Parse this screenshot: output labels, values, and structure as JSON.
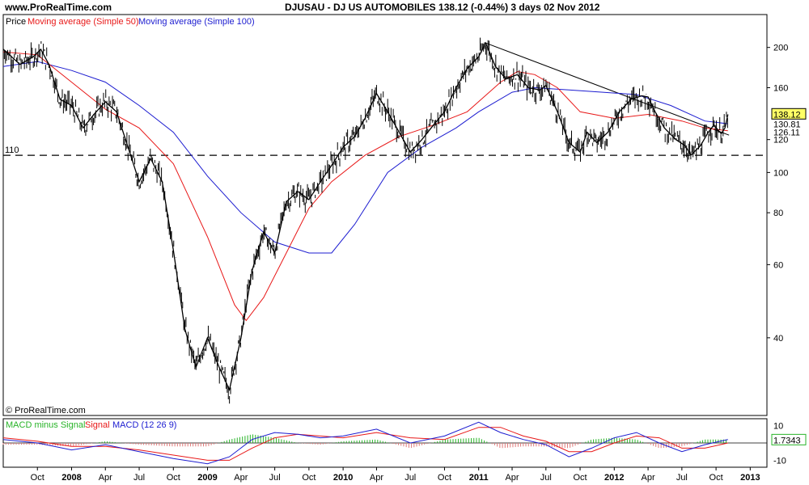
{
  "header": {
    "site": "www.ProRealTime.com",
    "title": "DJUSAU - DJ US AUTOMOBILES     138.12 (-0.44%)     3 days  02 Nov 2012"
  },
  "watermark": "© ProRealTime.com",
  "colors": {
    "price": "#000000",
    "ma50": "#e81818",
    "ma100": "#1c1cd0",
    "macd_line": "#1c1cd0",
    "signal_line": "#e81818",
    "histogram": "#28b428",
    "histogram_neg": "#e07878",
    "trendline": "#000000",
    "hline": "#000000"
  },
  "chart_data": [
    {
      "type": "line",
      "panel": "price",
      "scale": "log",
      "legend": [
        "Price",
        "Moving average (Simple 50)",
        "Moving average (Simple 100)"
      ],
      "ylim": [
        26,
        240
      ],
      "y_ticks": [
        40,
        60,
        80,
        100,
        120,
        160,
        200
      ],
      "horizontal_line": {
        "value": 110,
        "label": "110",
        "style": "dashed"
      },
      "last_price": {
        "value": "138.12"
      },
      "ma_labels": [
        "130.81",
        "126.11"
      ],
      "trendline": {
        "from": {
          "x": "2011-01-20",
          "y": 205
        },
        "to": {
          "x": "2012-11-05",
          "y": 123
        }
      },
      "x_ticks": [
        {
          "date": "2007-10-01",
          "label": "Oct",
          "year": false
        },
        {
          "date": "2008-01-01",
          "label": "2008",
          "year": true
        },
        {
          "date": "2008-04-01",
          "label": "Apr",
          "year": false
        },
        {
          "date": "2008-07-01",
          "label": "Jul",
          "year": false
        },
        {
          "date": "2008-10-01",
          "label": "Oct",
          "year": false
        },
        {
          "date": "2009-01-01",
          "label": "2009",
          "year": true
        },
        {
          "date": "2009-04-01",
          "label": "Apr",
          "year": false
        },
        {
          "date": "2009-07-01",
          "label": "Jul",
          "year": false
        },
        {
          "date": "2009-10-01",
          "label": "Oct",
          "year": false
        },
        {
          "date": "2010-01-01",
          "label": "2010",
          "year": true
        },
        {
          "date": "2010-04-01",
          "label": "Apr",
          "year": false
        },
        {
          "date": "2010-07-01",
          "label": "Jul",
          "year": false
        },
        {
          "date": "2010-10-01",
          "label": "Oct",
          "year": false
        },
        {
          "date": "2011-01-01",
          "label": "2011",
          "year": true
        },
        {
          "date": "2011-04-01",
          "label": "Apr",
          "year": false
        },
        {
          "date": "2011-07-01",
          "label": "Jul",
          "year": false
        },
        {
          "date": "2011-10-01",
          "label": "Oct",
          "year": false
        },
        {
          "date": "2012-01-01",
          "label": "2012",
          "year": true
        },
        {
          "date": "2012-04-01",
          "label": "Apr",
          "year": false
        },
        {
          "date": "2012-07-01",
          "label": "Jul",
          "year": false
        },
        {
          "date": "2012-10-01",
          "label": "Oct",
          "year": false
        },
        {
          "date": "2013-01-01",
          "label": "2013",
          "year": true
        }
      ],
      "series": [
        {
          "name": "Price",
          "points": [
            [
              "2007-07-01",
              198
            ],
            [
              "2007-08-15",
              182
            ],
            [
              "2007-09-20",
              190
            ],
            [
              "2007-10-10",
              198
            ],
            [
              "2007-11-01",
              182
            ],
            [
              "2007-12-01",
              150
            ],
            [
              "2008-01-01",
              145
            ],
            [
              "2008-02-01",
              128
            ],
            [
              "2008-03-01",
              138
            ],
            [
              "2008-04-01",
              148
            ],
            [
              "2008-05-01",
              140
            ],
            [
              "2008-06-01",
              115
            ],
            [
              "2008-07-01",
              95
            ],
            [
              "2008-08-01",
              108
            ],
            [
              "2008-09-01",
              95
            ],
            [
              "2008-10-01",
              65
            ],
            [
              "2008-11-01",
              42
            ],
            [
              "2008-12-01",
              34
            ],
            [
              "2009-01-01",
              40
            ],
            [
              "2009-02-01",
              34
            ],
            [
              "2009-03-01",
              30
            ],
            [
              "2009-04-01",
              40
            ],
            [
              "2009-05-01",
              58
            ],
            [
              "2009-06-01",
              72
            ],
            [
              "2009-07-01",
              64
            ],
            [
              "2009-08-01",
              85
            ],
            [
              "2009-09-01",
              90
            ],
            [
              "2009-10-01",
              86
            ],
            [
              "2009-11-01",
              95
            ],
            [
              "2009-12-01",
              104
            ],
            [
              "2010-01-01",
              115
            ],
            [
              "2010-02-01",
              122
            ],
            [
              "2010-03-01",
              135
            ],
            [
              "2010-04-01",
              155
            ],
            [
              "2010-05-01",
              140
            ],
            [
              "2010-06-01",
              125
            ],
            [
              "2010-07-01",
              112
            ],
            [
              "2010-08-01",
              120
            ],
            [
              "2010-09-01",
              130
            ],
            [
              "2010-10-01",
              140
            ],
            [
              "2010-11-01",
              160
            ],
            [
              "2010-12-01",
              178
            ],
            [
              "2011-01-01",
              190
            ],
            [
              "2011-01-20",
              205
            ],
            [
              "2011-02-15",
              180
            ],
            [
              "2011-03-15",
              168
            ],
            [
              "2011-04-15",
              172
            ],
            [
              "2011-05-15",
              160
            ],
            [
              "2011-06-15",
              158
            ],
            [
              "2011-07-01",
              162
            ],
            [
              "2011-08-01",
              140
            ],
            [
              "2011-09-01",
              118
            ],
            [
              "2011-10-01",
              112
            ],
            [
              "2011-10-20",
              125
            ],
            [
              "2011-11-15",
              118
            ],
            [
              "2011-12-15",
              125
            ],
            [
              "2012-01-15",
              140
            ],
            [
              "2012-02-15",
              150
            ],
            [
              "2012-03-15",
              153
            ],
            [
              "2012-04-01",
              152
            ],
            [
              "2012-04-20",
              140
            ],
            [
              "2012-05-15",
              128
            ],
            [
              "2012-06-15",
              120
            ],
            [
              "2012-07-10",
              116
            ],
            [
              "2012-07-25",
              110
            ],
            [
              "2012-08-20",
              116
            ],
            [
              "2012-09-10",
              125
            ],
            [
              "2012-09-25",
              130
            ],
            [
              "2012-10-15",
              124
            ],
            [
              "2012-10-25",
              128
            ],
            [
              "2012-11-02",
              138
            ]
          ]
        },
        {
          "name": "Moving average (Simple 50)",
          "points": [
            [
              "2007-07-01",
              195
            ],
            [
              "2007-10-01",
              192
            ],
            [
              "2008-01-01",
              165
            ],
            [
              "2008-04-01",
              142
            ],
            [
              "2008-07-01",
              128
            ],
            [
              "2008-10-01",
              105
            ],
            [
              "2009-01-01",
              70
            ],
            [
              "2009-03-15",
              48
            ],
            [
              "2009-04-15",
              44
            ],
            [
              "2009-06-01",
              50
            ],
            [
              "2009-08-01",
              64
            ],
            [
              "2009-10-01",
              82
            ],
            [
              "2009-12-01",
              95
            ],
            [
              "2010-03-01",
              110
            ],
            [
              "2010-06-01",
              122
            ],
            [
              "2010-09-01",
              130
            ],
            [
              "2010-12-01",
              140
            ],
            [
              "2011-03-01",
              165
            ],
            [
              "2011-04-15",
              175
            ],
            [
              "2011-06-01",
              172
            ],
            [
              "2011-08-01",
              160
            ],
            [
              "2011-10-01",
              140
            ],
            [
              "2012-01-01",
              135
            ],
            [
              "2012-04-01",
              138
            ],
            [
              "2012-07-01",
              133
            ],
            [
              "2012-09-01",
              128
            ],
            [
              "2012-11-02",
              126
            ]
          ]
        },
        {
          "name": "Moving average (Simple 100)",
          "points": [
            [
              "2007-07-01",
              180
            ],
            [
              "2007-10-01",
              185
            ],
            [
              "2008-01-01",
              176
            ],
            [
              "2008-04-01",
              165
            ],
            [
              "2008-07-01",
              145
            ],
            [
              "2008-10-01",
              125
            ],
            [
              "2009-01-01",
              98
            ],
            [
              "2009-04-01",
              80
            ],
            [
              "2009-07-01",
              68
            ],
            [
              "2009-10-01",
              64
            ],
            [
              "2009-12-01",
              64
            ],
            [
              "2010-02-01",
              75
            ],
            [
              "2010-05-01",
              100
            ],
            [
              "2010-08-01",
              115
            ],
            [
              "2010-11-01",
              128
            ],
            [
              "2011-01-01",
              140
            ],
            [
              "2011-04-01",
              156
            ],
            [
              "2011-06-01",
              160
            ],
            [
              "2011-09-01",
              158
            ],
            [
              "2011-12-01",
              156
            ],
            [
              "2012-03-01",
              154
            ],
            [
              "2012-06-01",
              145
            ],
            [
              "2012-09-01",
              133
            ],
            [
              "2012-11-02",
              131
            ]
          ]
        }
      ]
    },
    {
      "type": "line",
      "panel": "macd",
      "legend": [
        "MACD minus Signal",
        "Signal",
        "MACD (12 26 9)"
      ],
      "ylim": [
        -14,
        14
      ],
      "y_ticks": [
        10,
        -10
      ],
      "last_value": "1.7343",
      "series": [
        {
          "name": "MACD (12 26 9)",
          "points": [
            [
              "2007-07-01",
              2
            ],
            [
              "2007-10-01",
              0
            ],
            [
              "2008-01-01",
              -4
            ],
            [
              "2008-04-01",
              -1
            ],
            [
              "2008-07-01",
              -5
            ],
            [
              "2008-10-01",
              -9
            ],
            [
              "2009-01-01",
              -12
            ],
            [
              "2009-03-01",
              -8
            ],
            [
              "2009-05-01",
              2
            ],
            [
              "2009-07-01",
              6
            ],
            [
              "2009-09-01",
              5
            ],
            [
              "2009-11-01",
              3
            ],
            [
              "2010-01-01",
              4
            ],
            [
              "2010-04-01",
              8
            ],
            [
              "2010-07-01",
              0
            ],
            [
              "2010-10-01",
              4
            ],
            [
              "2011-01-01",
              12
            ],
            [
              "2011-03-01",
              6
            ],
            [
              "2011-05-01",
              2
            ],
            [
              "2011-07-01",
              -1
            ],
            [
              "2011-09-01",
              -8
            ],
            [
              "2011-11-01",
              -3
            ],
            [
              "2012-01-01",
              3
            ],
            [
              "2012-03-01",
              6
            ],
            [
              "2012-05-01",
              0
            ],
            [
              "2012-07-01",
              -5
            ],
            [
              "2012-09-01",
              -1
            ],
            [
              "2012-11-02",
              2
            ]
          ]
        },
        {
          "name": "Signal",
          "points": [
            [
              "2007-07-01",
              3
            ],
            [
              "2007-10-01",
              1
            ],
            [
              "2008-01-01",
              -2
            ],
            [
              "2008-04-01",
              -2
            ],
            [
              "2008-07-01",
              -4
            ],
            [
              "2008-10-01",
              -7
            ],
            [
              "2009-01-01",
              -10
            ],
            [
              "2009-03-01",
              -10
            ],
            [
              "2009-05-01",
              -3
            ],
            [
              "2009-07-01",
              3
            ],
            [
              "2009-09-01",
              5
            ],
            [
              "2009-11-01",
              4
            ],
            [
              "2010-01-01",
              3
            ],
            [
              "2010-04-01",
              6
            ],
            [
              "2010-07-01",
              3
            ],
            [
              "2010-10-01",
              2
            ],
            [
              "2011-01-01",
              9
            ],
            [
              "2011-03-01",
              9
            ],
            [
              "2011-05-01",
              4
            ],
            [
              "2011-07-01",
              1
            ],
            [
              "2011-09-01",
              -5
            ],
            [
              "2011-11-01",
              -5
            ],
            [
              "2012-01-01",
              0
            ],
            [
              "2012-03-01",
              4
            ],
            [
              "2012-05-01",
              3
            ],
            [
              "2012-07-01",
              -3
            ],
            [
              "2012-09-01",
              -3
            ],
            [
              "2012-11-02",
              0
            ]
          ]
        }
      ]
    }
  ]
}
